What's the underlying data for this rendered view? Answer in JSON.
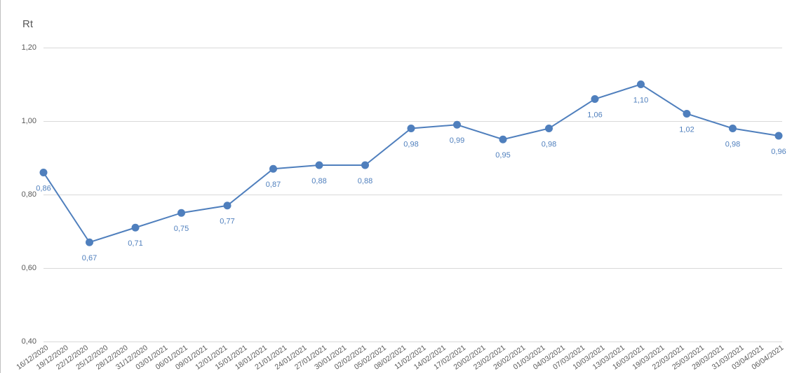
{
  "chart_data": {
    "type": "line",
    "y_label": "Rt",
    "x_axis_labels": [
      "16/12/2020",
      "19/12/2020",
      "22/12/2020",
      "25/12/2020",
      "28/12/2020",
      "31/12/2020",
      "03/01/2021",
      "06/01/2021",
      "09/01/2021",
      "12/01/2021",
      "15/01/2021",
      "18/01/2021",
      "21/01/2021",
      "24/01/2021",
      "27/01/2021",
      "30/01/2021",
      "02/02/2021",
      "05/02/2021",
      "08/02/2021",
      "11/02/2021",
      "14/02/2021",
      "17/02/2021",
      "20/02/2021",
      "23/02/2021",
      "26/02/2021",
      "01/03/2021",
      "04/03/2021",
      "07/03/2021",
      "10/03/2021",
      "13/03/2021",
      "16/03/2021",
      "19/03/2021",
      "22/03/2021",
      "25/03/2021",
      "28/03/2021",
      "31/03/2021",
      "03/04/2021",
      "06/04/2021"
    ],
    "values": [
      0.86,
      0.67,
      0.71,
      0.75,
      0.77,
      0.87,
      0.88,
      0.88,
      0.98,
      0.99,
      0.95,
      0.98,
      1.06,
      1.1,
      1.02,
      0.98,
      0.96
    ],
    "value_labels": [
      "0,86",
      "0,67",
      "0,71",
      "0,75",
      "0,77",
      "0,87",
      "0,88",
      "0,88",
      "0,98",
      "0,99",
      "0,95",
      "0,98",
      "1,06",
      "1,10",
      "1,02",
      "0,98",
      "0,96"
    ],
    "color": "#4f7fbd",
    "ylim": [
      0.4,
      1.2
    ],
    "yticks": [
      {
        "value": 0.4,
        "label": "0,40"
      },
      {
        "value": 0.6,
        "label": "0,60"
      },
      {
        "value": 0.8,
        "label": "0,80"
      },
      {
        "value": 1.0,
        "label": "1,00"
      },
      {
        "value": 1.2,
        "label": "1,20"
      }
    ],
    "grid": true
  }
}
